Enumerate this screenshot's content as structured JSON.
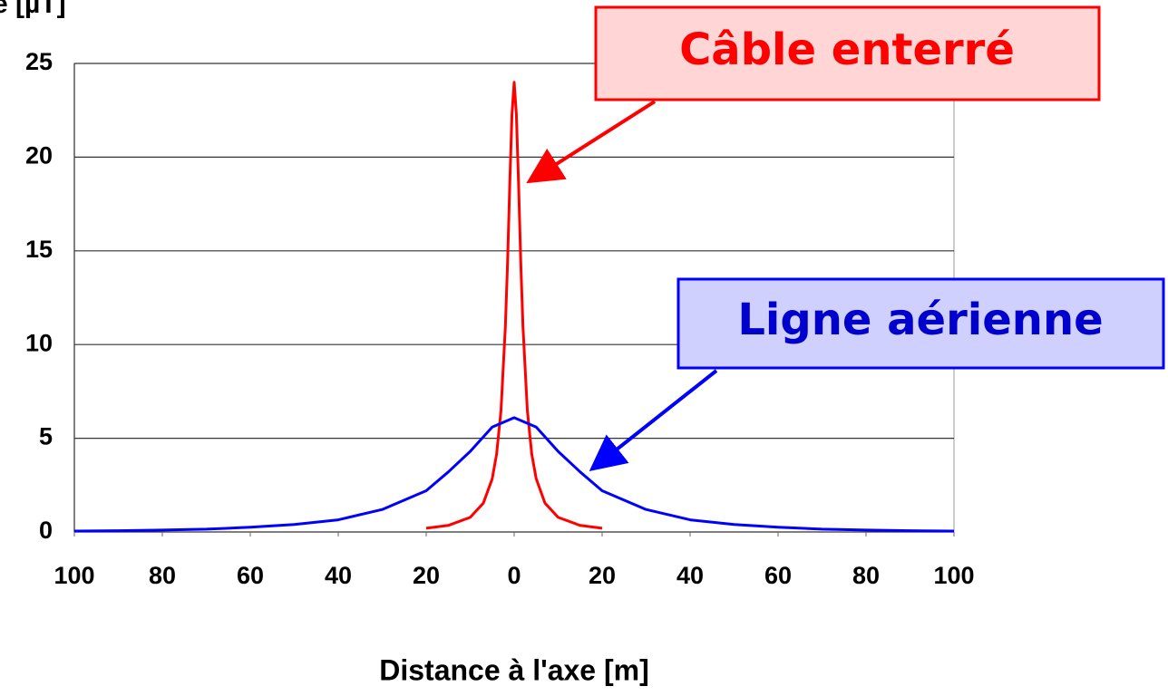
{
  "chart_data": {
    "type": "line",
    "ylabel": "e [µT]",
    "xlabel": "Distance à l'axe [m]",
    "xlim": [
      -100,
      100
    ],
    "ylim": [
      0,
      25
    ],
    "xticks": [
      {
        "value": -100,
        "label": "100"
      },
      {
        "value": -80,
        "label": "80"
      },
      {
        "value": -60,
        "label": "60"
      },
      {
        "value": -40,
        "label": "40"
      },
      {
        "value": -20,
        "label": "20"
      },
      0,
      20,
      40,
      60,
      80,
      100
    ],
    "yticks": [
      0,
      5,
      10,
      15,
      20,
      25
    ],
    "grid": true,
    "series": [
      {
        "name": "Câble enterré",
        "color": "#ff0000",
        "x": [
          -20,
          -15,
          -10,
          -7,
          -5,
          -4,
          -3,
          -2,
          -1.5,
          -1,
          -0.5,
          0,
          0.5,
          1,
          1.5,
          2,
          3,
          4,
          5,
          7,
          10,
          15,
          20
        ],
        "values": [
          0.2,
          0.35,
          0.78,
          1.54,
          2.84,
          4.15,
          6.5,
          10.96,
          14.35,
          18.5,
          22.3,
          24,
          22.3,
          18.5,
          14.35,
          10.96,
          6.5,
          4.15,
          2.84,
          1.54,
          0.78,
          0.35,
          0.2
        ]
      },
      {
        "name": "Ligne aérienne",
        "color": "#0000ff",
        "x": [
          -100,
          -90,
          -80,
          -70,
          -60,
          -50,
          -40,
          -30,
          -20,
          -15,
          -10,
          -5,
          0,
          5,
          10,
          15,
          20,
          30,
          40,
          50,
          60,
          70,
          80,
          90,
          100
        ],
        "values": [
          0.05,
          0.07,
          0.1,
          0.15,
          0.25,
          0.4,
          0.65,
          1.2,
          2.2,
          3.2,
          4.3,
          5.6,
          6.1,
          5.6,
          4.3,
          3.2,
          2.2,
          1.2,
          0.65,
          0.4,
          0.25,
          0.15,
          0.1,
          0.07,
          0.05
        ]
      }
    ]
  }
}
